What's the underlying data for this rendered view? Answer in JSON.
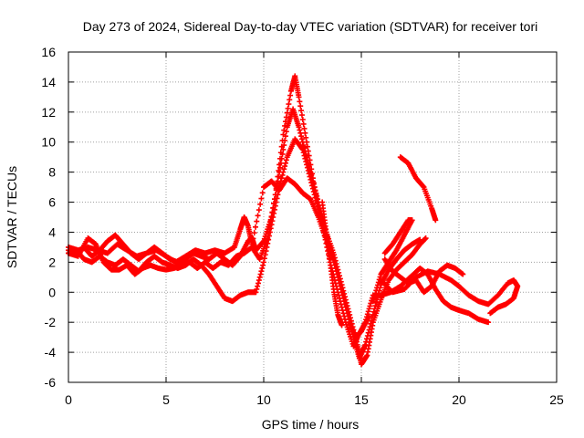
{
  "chart_data": {
    "type": "scatter",
    "title": "Day 273 of 2024, Sidereal Day-to-day VTEC variation (SDTVAR) for receiver tori",
    "xlabel": "GPS time / hours",
    "ylabel": "SDTVAR / TECUs",
    "xlim": [
      0,
      25
    ],
    "ylim": [
      -6,
      16
    ],
    "xticks": [
      0,
      5,
      10,
      15,
      20,
      25
    ],
    "yticks": [
      -6,
      -4,
      -2,
      0,
      2,
      4,
      6,
      8,
      10,
      12,
      14,
      16
    ],
    "grid": true,
    "marker": "plus",
    "color": "#ff0000",
    "series": [
      {
        "points": [
          [
            0,
            2.8
          ],
          [
            0.4,
            2.6
          ],
          [
            0.8,
            3.0
          ],
          [
            1.2,
            2.4
          ],
          [
            1.6,
            2.8
          ],
          [
            2.0,
            3.4
          ],
          [
            2.4,
            3.8
          ],
          [
            2.8,
            3.2
          ],
          [
            3.2,
            2.6
          ],
          [
            3.6,
            2.2
          ],
          [
            4.0,
            2.6
          ],
          [
            4.4,
            3.0
          ],
          [
            4.8,
            2.6
          ],
          [
            5.2,
            2.2
          ],
          [
            5.6,
            2.0
          ],
          [
            6.0,
            2.2
          ],
          [
            6.4,
            2.6
          ],
          [
            6.8,
            2.4
          ],
          [
            7.2,
            2.2
          ],
          [
            7.6,
            2.6
          ],
          [
            8.0,
            2.2
          ],
          [
            8.4,
            1.8
          ],
          [
            8.8,
            2.4
          ],
          [
            9.2,
            3.4
          ],
          [
            9.4,
            3.6
          ],
          [
            9.6,
            2.8
          ],
          [
            10.0,
            3.4
          ],
          [
            10.4,
            5.0
          ],
          [
            10.8,
            8.0
          ],
          [
            11.2,
            11.0
          ],
          [
            11.5,
            12.2
          ],
          [
            11.8,
            11.0
          ],
          [
            12.2,
            9.0
          ],
          [
            12.6,
            7.0
          ],
          [
            13.0,
            5.0
          ],
          [
            13.4,
            3.0
          ],
          [
            13.8,
            1.0
          ],
          [
            14.2,
            -1.0
          ],
          [
            14.6,
            -3.0
          ],
          [
            14.9,
            -4.4
          ],
          [
            15.2,
            -3.5
          ],
          [
            15.6,
            -1.5
          ],
          [
            16.0,
            0.5
          ],
          [
            16.4,
            1.5
          ],
          [
            16.8,
            2.2
          ],
          [
            17.2,
            2.8
          ],
          [
            17.6,
            3.2
          ],
          [
            18.0,
            3.5
          ]
        ]
      },
      {
        "points": [
          [
            0,
            2.6
          ],
          [
            0.4,
            2.8
          ],
          [
            0.8,
            2.2
          ],
          [
            1.2,
            2.0
          ],
          [
            1.6,
            2.4
          ],
          [
            2.0,
            2.0
          ],
          [
            2.4,
            1.8
          ],
          [
            2.8,
            2.2
          ],
          [
            3.2,
            1.8
          ],
          [
            3.6,
            1.4
          ],
          [
            4.0,
            2.0
          ],
          [
            4.4,
            2.4
          ],
          [
            4.8,
            2.0
          ],
          [
            5.2,
            1.8
          ],
          [
            5.6,
            1.6
          ],
          [
            6.0,
            1.8
          ],
          [
            6.4,
            2.2
          ],
          [
            6.8,
            1.8
          ],
          [
            7.2,
            1.2
          ],
          [
            7.6,
            0.4
          ],
          [
            8.0,
            -0.4
          ],
          [
            8.4,
            -0.6
          ],
          [
            8.8,
            -0.2
          ],
          [
            9.2,
            0.0
          ],
          [
            9.6,
            0.0
          ],
          [
            10.0,
            2.0
          ],
          [
            10.4,
            4.5
          ],
          [
            10.8,
            7.0
          ],
          [
            11.2,
            9.0
          ],
          [
            11.6,
            10.2
          ],
          [
            12.0,
            9.5
          ],
          [
            12.4,
            7.5
          ],
          [
            12.8,
            5.5
          ],
          [
            13.2,
            4.0
          ],
          [
            13.6,
            2.5
          ],
          [
            14.0,
            0.5
          ],
          [
            14.4,
            -1.5
          ],
          [
            14.8,
            -3.5
          ],
          [
            15.0,
            -4.8
          ],
          [
            15.3,
            -4.2
          ],
          [
            15.6,
            -2.0
          ],
          [
            16.0,
            -0.5
          ],
          [
            16.4,
            0.8
          ],
          [
            16.8,
            1.5
          ],
          [
            17.2,
            2.0
          ],
          [
            17.6,
            2.5
          ],
          [
            18.0,
            3.2
          ],
          [
            18.3,
            3.6
          ]
        ]
      },
      {
        "points": [
          [
            0,
            2.6
          ],
          [
            0.5,
            2.4
          ],
          [
            1.0,
            3.6
          ],
          [
            1.4,
            3.2
          ],
          [
            1.8,
            2.0
          ],
          [
            2.2,
            1.5
          ],
          [
            2.6,
            1.5
          ],
          [
            3.0,
            1.8
          ],
          [
            3.4,
            1.2
          ],
          [
            3.8,
            1.6
          ],
          [
            4.2,
            1.8
          ],
          [
            4.6,
            1.6
          ],
          [
            5.0,
            1.5
          ],
          [
            5.4,
            1.6
          ],
          [
            5.8,
            1.8
          ],
          [
            6.2,
            2.0
          ],
          [
            6.6,
            1.6
          ],
          [
            7.0,
            2.0
          ],
          [
            7.4,
            1.6
          ],
          [
            7.8,
            2.0
          ],
          [
            8.2,
            1.8
          ],
          [
            8.6,
            2.4
          ],
          [
            9.0,
            2.6
          ],
          [
            9.4,
            3.0
          ],
          [
            9.8,
            2.2
          ],
          [
            10.2,
            3.6
          ],
          [
            10.6,
            6.5
          ],
          [
            11.0,
            10.5
          ],
          [
            11.4,
            13.4
          ],
          [
            11.6,
            14.4
          ],
          [
            11.8,
            13.0
          ],
          [
            12.2,
            10.0
          ],
          [
            12.6,
            7.0
          ],
          [
            13.0,
            4.5
          ],
          [
            13.4,
            2.0
          ],
          [
            13.8,
            0.0
          ],
          [
            14.2,
            -2.0
          ],
          [
            14.6,
            -3.6
          ],
          [
            14.8,
            -3.0
          ],
          [
            15.2,
            -2.0
          ],
          [
            15.6,
            -0.2
          ],
          [
            16.0,
            -0.2
          ],
          [
            16.5,
            0.0
          ],
          [
            17.0,
            0.4
          ],
          [
            17.5,
            1.0
          ],
          [
            18.0,
            1.6
          ],
          [
            18.4,
            1.2
          ],
          [
            18.8,
            0.2
          ],
          [
            19.2,
            -0.6
          ],
          [
            19.6,
            -1.0
          ],
          [
            20.0,
            -1.2
          ],
          [
            20.5,
            -1.4
          ],
          [
            21.0,
            -1.8
          ],
          [
            21.5,
            -2.0
          ]
        ]
      },
      {
        "points": [
          [
            0,
            3.0
          ],
          [
            0.5,
            2.8
          ],
          [
            1.0,
            3.0
          ],
          [
            1.5,
            2.8
          ],
          [
            2.0,
            2.6
          ],
          [
            2.5,
            3.2
          ],
          [
            3.0,
            2.8
          ],
          [
            3.5,
            2.4
          ],
          [
            4.0,
            2.6
          ],
          [
            4.5,
            2.8
          ],
          [
            5.0,
            2.4
          ],
          [
            5.5,
            2.0
          ],
          [
            6.0,
            2.4
          ],
          [
            6.5,
            2.8
          ],
          [
            7.0,
            2.6
          ],
          [
            7.5,
            2.8
          ],
          [
            8.0,
            2.6
          ],
          [
            8.5,
            3.0
          ],
          [
            8.8,
            4.2
          ],
          [
            9.0,
            5.0
          ],
          [
            9.2,
            4.4
          ],
          [
            9.4,
            3.2
          ],
          [
            10.0,
            7.0
          ],
          [
            10.4,
            7.4
          ],
          [
            10.8,
            6.8
          ],
          [
            11.2,
            7.6
          ],
          [
            11.6,
            7.2
          ],
          [
            12.0,
            6.6
          ],
          [
            12.4,
            6.2
          ],
          [
            12.8,
            5.0
          ],
          [
            13.2,
            3.5
          ],
          [
            13.6,
            2.0
          ],
          [
            14.0,
            0.0
          ],
          [
            14.4,
            -2.0
          ],
          [
            14.7,
            -3.0
          ],
          [
            15.0,
            -2.6
          ],
          [
            15.4,
            -1.6
          ]
        ]
      },
      {
        "points": [
          [
            13.0,
            6.0
          ],
          [
            13.2,
            4.0
          ],
          [
            13.4,
            2.0
          ],
          [
            13.6,
            0.0
          ],
          [
            13.8,
            -1.5
          ],
          [
            14.0,
            -2.2
          ]
        ]
      },
      {
        "points": [
          [
            17.0,
            9.0
          ],
          [
            17.4,
            8.6
          ],
          [
            17.8,
            7.6
          ],
          [
            18.2,
            7.0
          ],
          [
            18.6,
            5.6
          ],
          [
            18.8,
            4.8
          ]
        ]
      },
      {
        "points": [
          [
            16.0,
            0.8
          ],
          [
            16.6,
            0.0
          ],
          [
            17.2,
            0.2
          ],
          [
            17.8,
            1.0
          ],
          [
            18.4,
            1.4
          ],
          [
            19.0,
            1.2
          ],
          [
            19.6,
            0.8
          ],
          [
            20.0,
            0.4
          ],
          [
            20.5,
            -0.2
          ],
          [
            21.0,
            -0.6
          ],
          [
            21.5,
            -0.8
          ],
          [
            22.0,
            -0.2
          ],
          [
            22.5,
            0.6
          ],
          [
            22.8,
            0.8
          ],
          [
            23.0,
            0.4
          ],
          [
            22.8,
            -0.4
          ],
          [
            22.4,
            -0.8
          ],
          [
            22.0,
            -1.0
          ],
          [
            21.6,
            -1.4
          ]
        ]
      },
      {
        "points": [
          [
            16.2,
            2.2
          ],
          [
            16.6,
            1.4
          ],
          [
            17.0,
            1.0
          ],
          [
            17.4,
            0.6
          ],
          [
            17.8,
            0.8
          ],
          [
            18.2,
            0.0
          ],
          [
            18.6,
            0.4
          ],
          [
            19.0,
            1.4
          ],
          [
            19.4,
            1.8
          ],
          [
            19.8,
            1.6
          ],
          [
            20.2,
            1.2
          ]
        ]
      },
      {
        "points": [
          [
            16.2,
            2.6
          ],
          [
            16.6,
            3.2
          ],
          [
            17.0,
            4.0
          ],
          [
            17.4,
            4.8
          ],
          [
            17.6,
            4.8
          ],
          [
            17.2,
            3.8
          ],
          [
            16.8,
            2.8
          ],
          [
            16.4,
            2.0
          ],
          [
            16.0,
            1.2
          ],
          [
            15.6,
            -0.6
          ]
        ]
      }
    ]
  }
}
